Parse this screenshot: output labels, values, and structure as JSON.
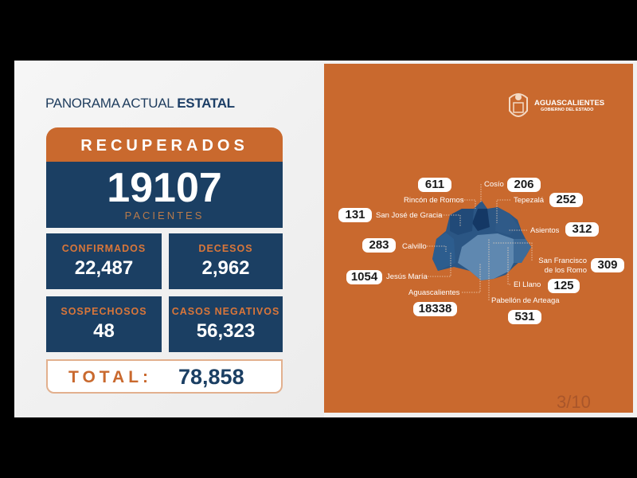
{
  "left": {
    "title_light": "PANORAMA ACTUAL ",
    "title_bold": "ESTATAL",
    "recuperados": {
      "label": "RECUPERADOS",
      "value": "19107",
      "unit": "PACIENTES"
    },
    "cards": [
      {
        "label": "CONFIRMADOS",
        "value": "22,487"
      },
      {
        "label": "DECESOS",
        "value": "2,962"
      },
      {
        "label": "SOSPECHOSOS",
        "value": "48"
      },
      {
        "label": "CASOS NEGATIVOS",
        "value": "56,323"
      }
    ],
    "total": {
      "label": "TOTAL:",
      "value": "78,858"
    }
  },
  "right": {
    "brand": "AGUASCALIENTES",
    "brand_sub": "GOBIERNO DEL ESTADO",
    "municipalities": [
      {
        "name": "Rincón de Romos",
        "value": "611"
      },
      {
        "name": "Cosío",
        "value": "206"
      },
      {
        "name": "Tepezalá",
        "value": "252"
      },
      {
        "name": "San José de Gracia",
        "value": "131"
      },
      {
        "name": "Asientos",
        "value": "312"
      },
      {
        "name": "Calvillo",
        "value": "283"
      },
      {
        "name": "San Francisco de los Romo",
        "value": "309"
      },
      {
        "name": "Jesús María",
        "value": "1054"
      },
      {
        "name": "El Llano",
        "value": "125"
      },
      {
        "name": "Aguascalientes",
        "value": "18338"
      },
      {
        "name": "Pabellón de Arteaga",
        "value": "531"
      }
    ],
    "page": "3/10",
    "colors": {
      "orange": "#c9692e",
      "navy": "#1b3f63"
    }
  }
}
